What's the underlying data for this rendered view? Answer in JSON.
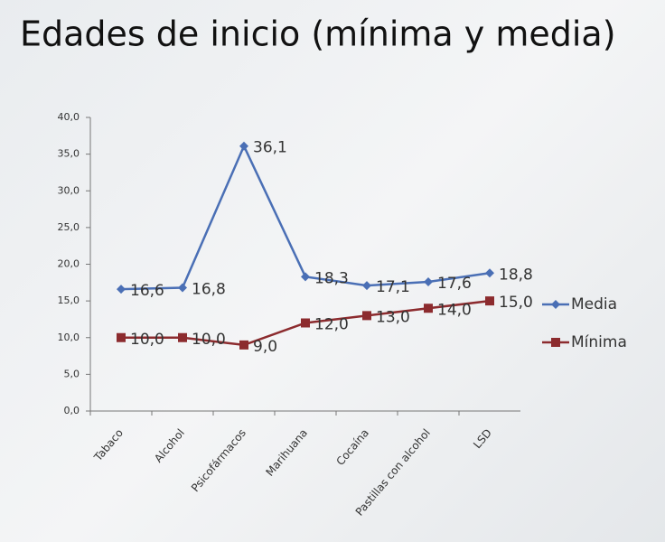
{
  "chart_data": {
    "type": "line",
    "title": "Edades de inicio (mínima y media)",
    "categories": [
      "Tabaco",
      "Alcohol",
      "Psicofármacos",
      "Marihuana",
      "Cocaína",
      "Pastillas con alcohol",
      "LSD"
    ],
    "series": [
      {
        "name": "Media",
        "color": "#4a6fb5",
        "marker": "diamond",
        "values": [
          16.6,
          16.8,
          36.1,
          18.3,
          17.1,
          17.6,
          18.8
        ],
        "value_labels": [
          "16,6",
          "16,8",
          "36,1",
          "18,3",
          "17,1",
          "17,6",
          "18,8"
        ]
      },
      {
        "name": "Mínima",
        "color": "#8c2b2e",
        "marker": "square",
        "values": [
          10.0,
          10.0,
          9.0,
          12.0,
          13.0,
          14.0,
          15.0
        ],
        "value_labels": [
          "10,0",
          "10,0",
          "9,0",
          "12,0",
          "13,0",
          "14,0",
          "15,0"
        ]
      }
    ],
    "ylim": [
      0,
      40
    ],
    "yticks": [
      {
        "value": 0,
        "label": "0,0"
      },
      {
        "value": 5,
        "label": "5,0"
      },
      {
        "value": 10,
        "label": "10,0"
      },
      {
        "value": 15,
        "label": "15,0"
      },
      {
        "value": 20,
        "label": "20,0"
      },
      {
        "value": 25,
        "label": "25,0"
      },
      {
        "value": 30,
        "label": "30,0"
      },
      {
        "value": 35,
        "label": "35,0"
      },
      {
        "value": 40,
        "label": "40,0"
      }
    ],
    "grid": false,
    "legend": "right"
  }
}
